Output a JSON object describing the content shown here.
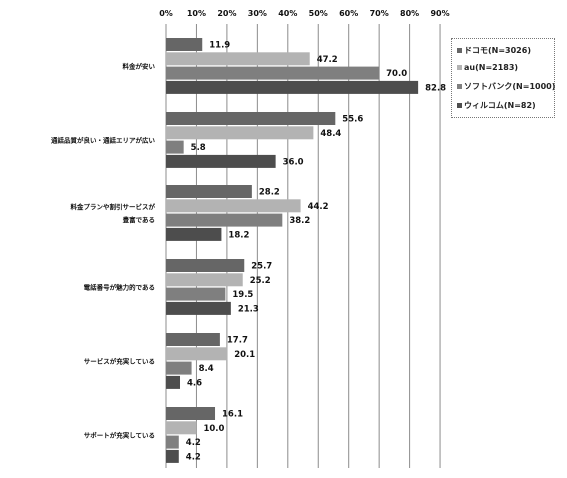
{
  "chart_data": {
    "type": "bar",
    "orientation": "horizontal",
    "x_ticks": [
      "0%",
      "10%",
      "20%",
      "30%",
      "40%",
      "50%",
      "60%",
      "70%",
      "80%",
      "90%"
    ],
    "xlim": [
      0,
      90
    ],
    "categories": [
      "料金が安い",
      "通話品質が良い・通話エリアが広い",
      "料金プランや割引サービスが豊富である",
      "電話番号が魅力的である",
      "サービスが充実している",
      "サポートが充実している"
    ],
    "series": [
      {
        "name": "ドコモ(N=3026)",
        "values": [
          11.9,
          55.6,
          28.2,
          25.7,
          17.7,
          16.1
        ]
      },
      {
        "name": "au(N=2183)",
        "values": [
          47.2,
          48.4,
          44.2,
          25.2,
          20.1,
          10.0
        ]
      },
      {
        "name": "ソフトバンク(N=1000)",
        "values": [
          70.0,
          5.8,
          38.2,
          19.5,
          8.4,
          4.2
        ]
      },
      {
        "name": "ウィルコム(N=82)",
        "values": [
          82.8,
          36.0,
          18.2,
          21.3,
          4.6,
          4.2
        ]
      }
    ],
    "value_labels": [
      [
        "11.9",
        "55.6",
        "28.2",
        "25.7",
        "17.7",
        "16.1"
      ],
      [
        "47.2",
        "48.4",
        "44.2",
        "25.2",
        "20.1",
        "10.0"
      ],
      [
        "70.0",
        "5.8",
        "38.2",
        "19.5",
        "8.4",
        "4.2"
      ],
      [
        "82.8",
        "36.0",
        "18.2",
        "21.3",
        "4.6",
        "4.2"
      ]
    ],
    "category_label_lines": [
      [
        "料金が安い"
      ],
      [
        "通話品質が良い・通話エリアが広い"
      ],
      [
        "料金プランや割引サービスが",
        "豊富である"
      ],
      [
        "電話番号が魅力的である"
      ],
      [
        "サービスが充実している"
      ],
      [
        "サポートが充実している"
      ]
    ],
    "grid": true,
    "legend_position": "top-right",
    "colors": [
      "#666666",
      "#b3b3b3",
      "#7f7f7f",
      "#4d4d4d"
    ]
  }
}
